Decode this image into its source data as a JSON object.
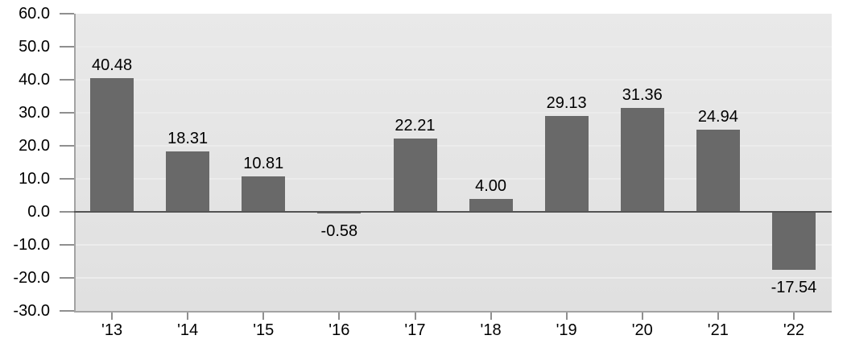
{
  "chart_data": {
    "type": "bar",
    "title": "",
    "xlabel": "",
    "ylabel": "",
    "categories": [
      "'13",
      "'14",
      "'15",
      "'16",
      "'17",
      "'18",
      "'19",
      "'20",
      "'21",
      "'22"
    ],
    "values": [
      40.48,
      18.31,
      10.81,
      -0.58,
      22.21,
      4.0,
      29.13,
      31.36,
      24.94,
      -17.54
    ],
    "value_labels": [
      "40.48",
      "18.31",
      "10.81",
      "-0.58",
      "22.21",
      "4.00",
      "29.13",
      "31.36",
      "24.94",
      "-17.54"
    ],
    "ylim": [
      -30,
      60
    ],
    "ytick_interval": 10,
    "ytick_labels": [
      "60.0",
      "50.0",
      "40.0",
      "30.0",
      "20.0",
      "10.0",
      "0.0",
      "-10.0",
      "-20.0",
      "-30.0"
    ],
    "grid": true,
    "legend": false,
    "colors": {
      "bar": "#696969",
      "plot_background_top": "#e9e9e9",
      "plot_background_bottom": "#e0e0e0",
      "gridline": "#ececec",
      "axis_line": "#a3a3a3",
      "tick": "#8f8f8f",
      "zero_line": "#545454",
      "label_text": "#000000",
      "page_background": "#ffffff"
    }
  }
}
